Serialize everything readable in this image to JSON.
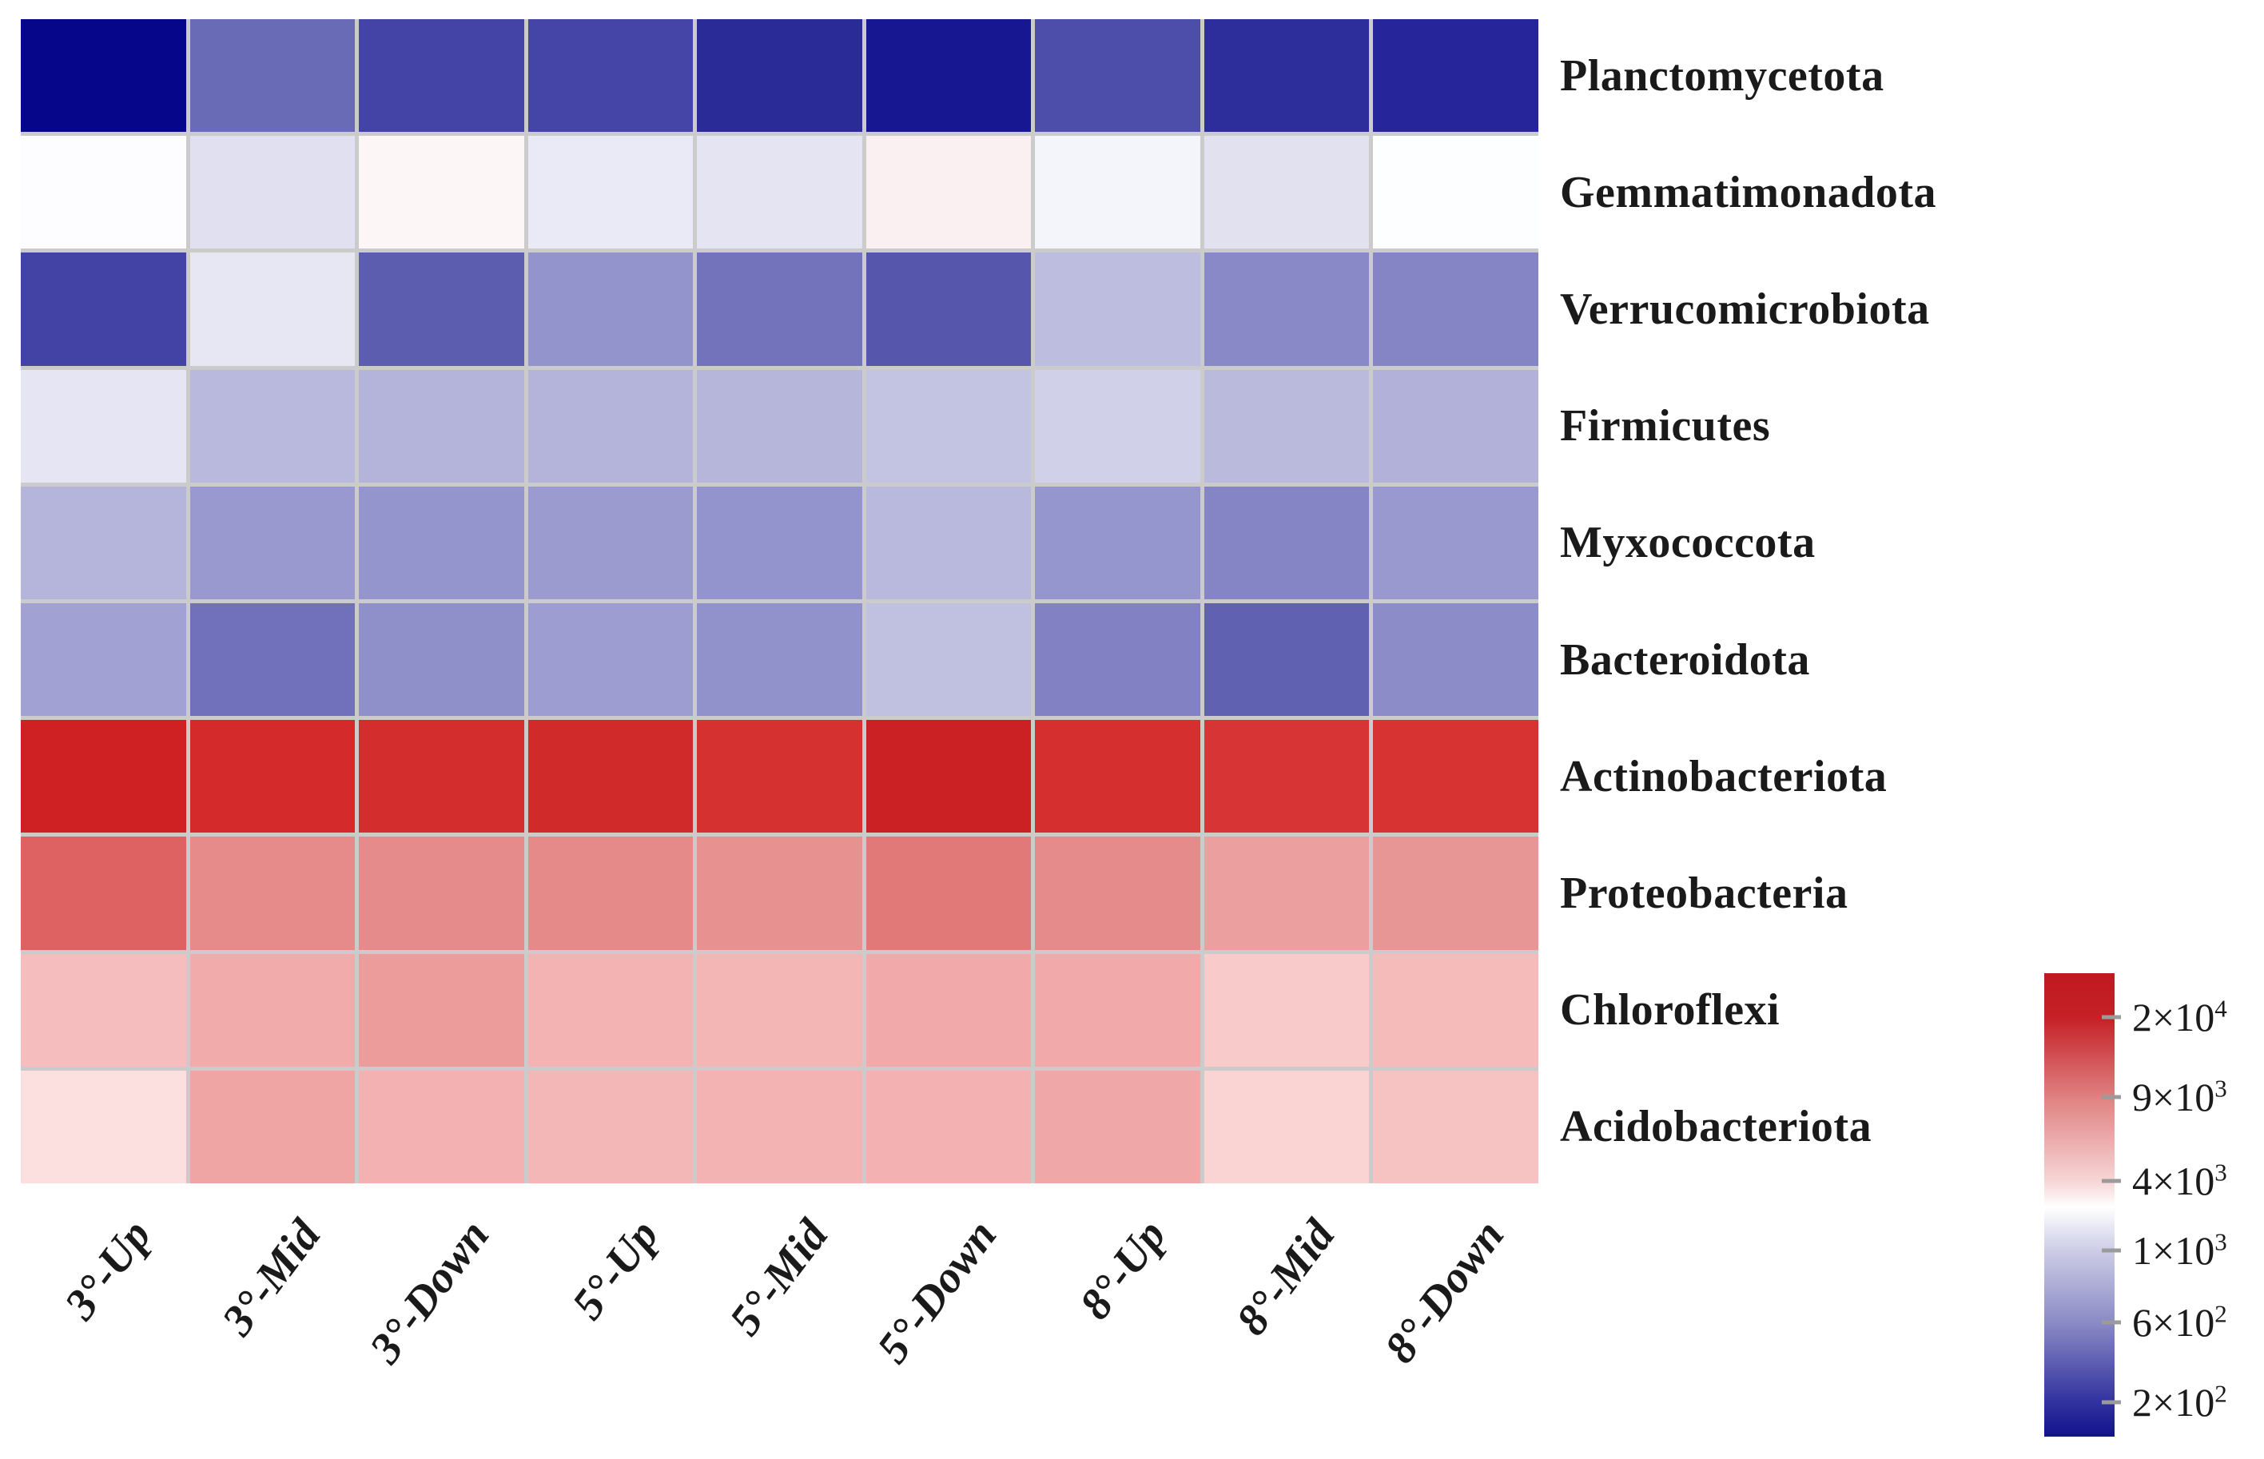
{
  "figure": {
    "background_color": "#ffffff",
    "text_color": "#1a1a1a",
    "grid_line_color": "#cbcbcb"
  },
  "chart_data": {
    "type": "heatmap",
    "title": "",
    "xlabel": "",
    "ylabel": "",
    "legend_position": "bottom-right",
    "grid": "on",
    "columns": [
      "3°-Up",
      "3°-Mid",
      "3°-Down",
      "5°-Up",
      "5°-Mid",
      "5°-Down",
      "8°-Up",
      "8°-Mid",
      "8°-Down"
    ],
    "rows": [
      "Planctomycetota",
      "Gemmatimonadota",
      "Verrucomicrobiota",
      "Firmicutes",
      "Myxococcota",
      "Bacteroidota",
      "Actinobacteriota",
      "Proteobacteria",
      "Chloroflexi",
      "Acidobacteriota"
    ],
    "values": [
      [
        150,
        460,
        260,
        260,
        215,
        180,
        285,
        215,
        200
      ],
      [
        2500,
        1400,
        3200,
        1600,
        1500,
        3400,
        1900,
        1400,
        2550
      ],
      [
        260,
        1550,
        350,
        680,
        480,
        330,
        900,
        610,
        590
      ],
      [
        1500,
        870,
        840,
        840,
        850,
        960,
        1150,
        880,
        820
      ],
      [
        850,
        700,
        690,
        710,
        680,
        870,
        690,
        590,
        700
      ],
      [
        740,
        470,
        650,
        720,
        660,
        930,
        560,
        380,
        630
      ],
      [
        21000,
        19000,
        18600,
        19000,
        18000,
        20000,
        18200,
        17400,
        17700
      ],
      [
        11000,
        8300,
        8300,
        8400,
        7900,
        9400,
        8300,
        7000,
        7700
      ],
      [
        5300,
        6400,
        7300,
        5800,
        5700,
        6500,
        6500,
        4600,
        5400
      ],
      [
        3800,
        6700,
        5900,
        5600,
        5800,
        5900,
        6600,
        4300,
        5100
      ]
    ],
    "cell_colors": [
      [
        "#06068b",
        "#6a6bb7",
        "#4444a6",
        "#4545a7",
        "#2b2b97",
        "#171791",
        "#4d4daa",
        "#2d2d9c",
        "#26269a"
      ],
      [
        "#fdfdff",
        "#e0e0f0",
        "#fdf6f7",
        "#eaeaf6",
        "#e4e4f2",
        "#fbf0f1",
        "#f4f4fb",
        "#e1e1f0",
        "#fdfeff"
      ],
      [
        "#4343a6",
        "#e7e7f3",
        "#5d5db0",
        "#9494cd",
        "#7373bc",
        "#5656ad",
        "#bdbde0",
        "#8989c7",
        "#8585c5"
      ],
      [
        "#e5e5f3",
        "#b9b9dd",
        "#b4b4da",
        "#b4b4da",
        "#b6b6db",
        "#c3c3e2",
        "#d0d0e9",
        "#babadd",
        "#b1b1d9"
      ],
      [
        "#b5b5db",
        "#9999d0",
        "#9595ce",
        "#9b9bd0",
        "#9393cd",
        "#b9b9dd",
        "#9696ce",
        "#8585c5",
        "#9999d0"
      ],
      [
        "#a1a1d3",
        "#7171bb",
        "#8f8fca",
        "#9d9dd1",
        "#9191cc",
        "#c0c0e1",
        "#8181c3",
        "#6161b2",
        "#8c8cc8"
      ],
      [
        "#cf2023",
        "#d42a2c",
        "#d32d2d",
        "#d12a2b",
        "#d63131",
        "#cb2125",
        "#d52f2f",
        "#d73535",
        "#d73333"
      ],
      [
        "#de6262",
        "#e68a8a",
        "#e68b8b",
        "#e68989",
        "#e89191",
        "#e17979",
        "#e68b8b",
        "#eb9f9f",
        "#e89595"
      ],
      [
        "#f5bdbd",
        "#f1abab",
        "#ed9c9c",
        "#f3b3b3",
        "#f4b5b5",
        "#f1a9a9",
        "#f1a9a9",
        "#f9caca",
        "#f5bbbb"
      ],
      [
        "#fcdfdf",
        "#f0a5a5",
        "#f3b1b1",
        "#f4b7b7",
        "#f3b3b3",
        "#f3b1b1",
        "#f0a7a7",
        "#fad3d3",
        "#f6c2c2"
      ]
    ],
    "value_range": [
      150,
      22000
    ],
    "colorbar": {
      "orientation": "vertical",
      "high_color": "#c01a20",
      "mid_color": "#ffffff",
      "low_color": "#12128c",
      "tick_labels": [
        "2×10^4",
        "9×10^3",
        "4×10^3",
        "1×10^3",
        "6×10^2",
        "2×10^2"
      ],
      "tick_positions_pct": [
        9.5,
        26.7,
        44.8,
        59.8,
        75.3,
        92.6
      ],
      "gradient_stops": [
        {
          "pct": 0,
          "color": "#c01a20"
        },
        {
          "pct": 9.5,
          "color": "#c52026"
        },
        {
          "pct": 27,
          "color": "#e08282"
        },
        {
          "pct": 45,
          "color": "#f7d6d6"
        },
        {
          "pct": 50.5,
          "color": "#ffffff"
        },
        {
          "pct": 60,
          "color": "#ccccE6"
        },
        {
          "pct": 75.5,
          "color": "#8a8ac5"
        },
        {
          "pct": 92.5,
          "color": "#3232a0"
        },
        {
          "pct": 100,
          "color": "#12128c"
        }
      ]
    }
  }
}
